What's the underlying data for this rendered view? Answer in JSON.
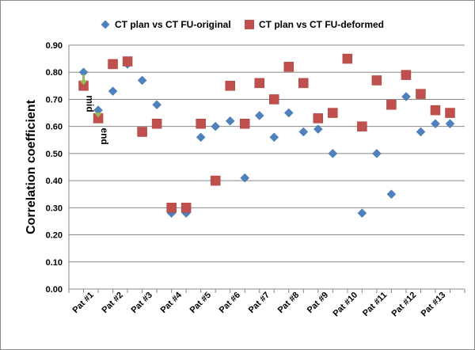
{
  "chart_data": {
    "type": "scatter",
    "title": "",
    "xlabel": "",
    "ylabel": "Correlation coefficient",
    "ylim": [
      0,
      0.9
    ],
    "yticks": [
      "0.00",
      "0.10",
      "0.20",
      "0.30",
      "0.40",
      "0.50",
      "0.60",
      "0.70",
      "0.80",
      "0.90"
    ],
    "grid": true,
    "legend_position": "top",
    "categories": [
      "Pat #1",
      "Pat #2",
      "Pat #3",
      "Pat #4",
      "Pat #5",
      "Pat #6",
      "Pat #7",
      "Pat #8",
      "Pat #9",
      "Pat #10",
      "Pat #11",
      "Pat #12",
      "Pat #13"
    ],
    "x": [
      0.5,
      1.0,
      1.5,
      2.0,
      2.5,
      3.0,
      3.5,
      4.0,
      4.5,
      5.0,
      5.5,
      6.0,
      6.5,
      7.0,
      7.5,
      8.0,
      8.5,
      9.0,
      9.5,
      10.0,
      10.5,
      11.0,
      11.5,
      12.0,
      12.5,
      13.0
    ],
    "series": [
      {
        "name": "CT plan vs CT FU-original",
        "marker": "diamond",
        "color": "#4f81bd",
        "values": [
          0.8,
          0.66,
          0.73,
          0.83,
          0.77,
          0.68,
          0.28,
          0.28,
          0.56,
          0.6,
          0.62,
          0.41,
          0.64,
          0.56,
          0.65,
          0.58,
          0.59,
          0.5,
          0.85,
          0.28,
          0.5,
          0.35,
          0.71,
          0.58,
          0.61,
          0.61
        ]
      },
      {
        "name": "CT plan vs CT FU-deformed",
        "marker": "square",
        "color": "#c0504d",
        "values": [
          0.75,
          0.63,
          0.83,
          0.84,
          0.58,
          0.61,
          0.3,
          0.3,
          0.61,
          0.4,
          0.75,
          0.61,
          0.76,
          0.7,
          0.82,
          0.76,
          0.63,
          0.65,
          0.85,
          0.6,
          0.77,
          0.68,
          0.79,
          0.72,
          0.66,
          0.65
        ]
      }
    ],
    "annotations": [
      {
        "text": "mid",
        "x": 0.5,
        "y_from": 0.8,
        "y_to": 0.75,
        "color": "#9bbb59"
      },
      {
        "text": "end",
        "x": 1.0,
        "y_from": 0.66,
        "y_to": 0.63,
        "color": "#9bbb59"
      }
    ]
  }
}
